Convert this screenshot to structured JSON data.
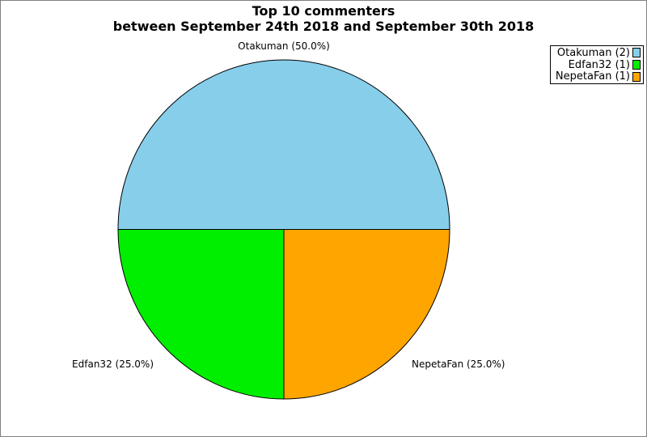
{
  "page": {
    "background_color": "#ffffff",
    "border_color": "#808080"
  },
  "title": {
    "line1": "Top 10 commenters",
    "line2": "between September 24th 2018 and September 30th 2018"
  },
  "chart_data": {
    "type": "pie",
    "title": "Top 10 commenters between September 24th 2018 and September 30th 2018",
    "start_angle_deg": 0,
    "direction": "counterclockwise",
    "legend_position": "top-right",
    "outline_color": "#000000",
    "slices": [
      {
        "label": "Otakuman",
        "count": 2,
        "percent": 50.0,
        "color": "#87CEEB",
        "callout": "Otakuman (50.0%)",
        "legend_label": "Otakuman (2)"
      },
      {
        "label": "Edfan32",
        "count": 1,
        "percent": 25.0,
        "color": "#00EE00",
        "callout": "Edfan32 (25.0%)",
        "legend_label": "Edfan32 (1)"
      },
      {
        "label": "NepetaFan",
        "count": 1,
        "percent": 25.0,
        "color": "#FFA500",
        "callout": "NepetaFan (25.0%)",
        "legend_label": "NepetaFan (1)"
      }
    ]
  }
}
